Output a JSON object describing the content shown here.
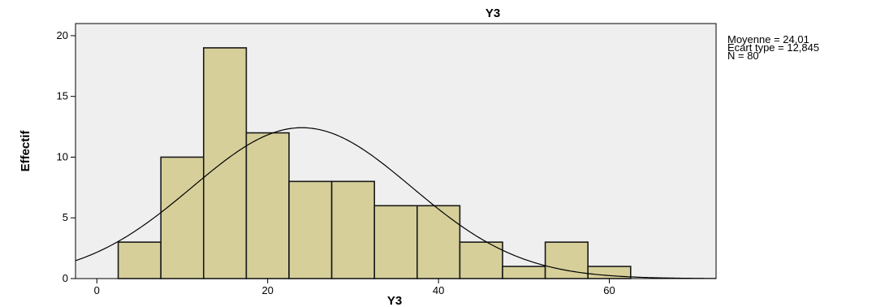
{
  "chart_data": {
    "type": "bar",
    "title": "Y3",
    "xlabel": "Y3",
    "ylabel": "Effectif",
    "xlim": [
      -2.5,
      72.5
    ],
    "ylim": [
      0,
      21
    ],
    "x_ticks": [
      0,
      20,
      40,
      60
    ],
    "y_ticks": [
      0,
      5,
      10,
      15,
      20
    ],
    "bin_width": 5,
    "bins": [
      {
        "start": 2.5,
        "end": 7.5,
        "count": 3
      },
      {
        "start": 7.5,
        "end": 12.5,
        "count": 10
      },
      {
        "start": 12.5,
        "end": 17.5,
        "count": 19
      },
      {
        "start": 17.5,
        "end": 22.5,
        "count": 12
      },
      {
        "start": 22.5,
        "end": 27.5,
        "count": 8
      },
      {
        "start": 27.5,
        "end": 32.5,
        "count": 8
      },
      {
        "start": 32.5,
        "end": 37.5,
        "count": 6
      },
      {
        "start": 37.5,
        "end": 42.5,
        "count": 6
      },
      {
        "start": 42.5,
        "end": 47.5,
        "count": 3
      },
      {
        "start": 47.5,
        "end": 52.5,
        "count": 1
      },
      {
        "start": 52.5,
        "end": 57.5,
        "count": 3
      },
      {
        "start": 57.5,
        "end": 62.5,
        "count": 1
      }
    ],
    "normal_curve": {
      "mean": 24.01,
      "sd": 12.845,
      "n": 80
    },
    "grid": false,
    "legend": "none"
  },
  "stats_box": {
    "lines": [
      "Moyenne = 24,01",
      "Ecart type = 12,845",
      "N = 80"
    ]
  },
  "colors": {
    "plot_background": "#efefef",
    "bar_fill": "#d6cf9a",
    "bar_stroke": "#1a1a1a",
    "curve": "#000000"
  }
}
